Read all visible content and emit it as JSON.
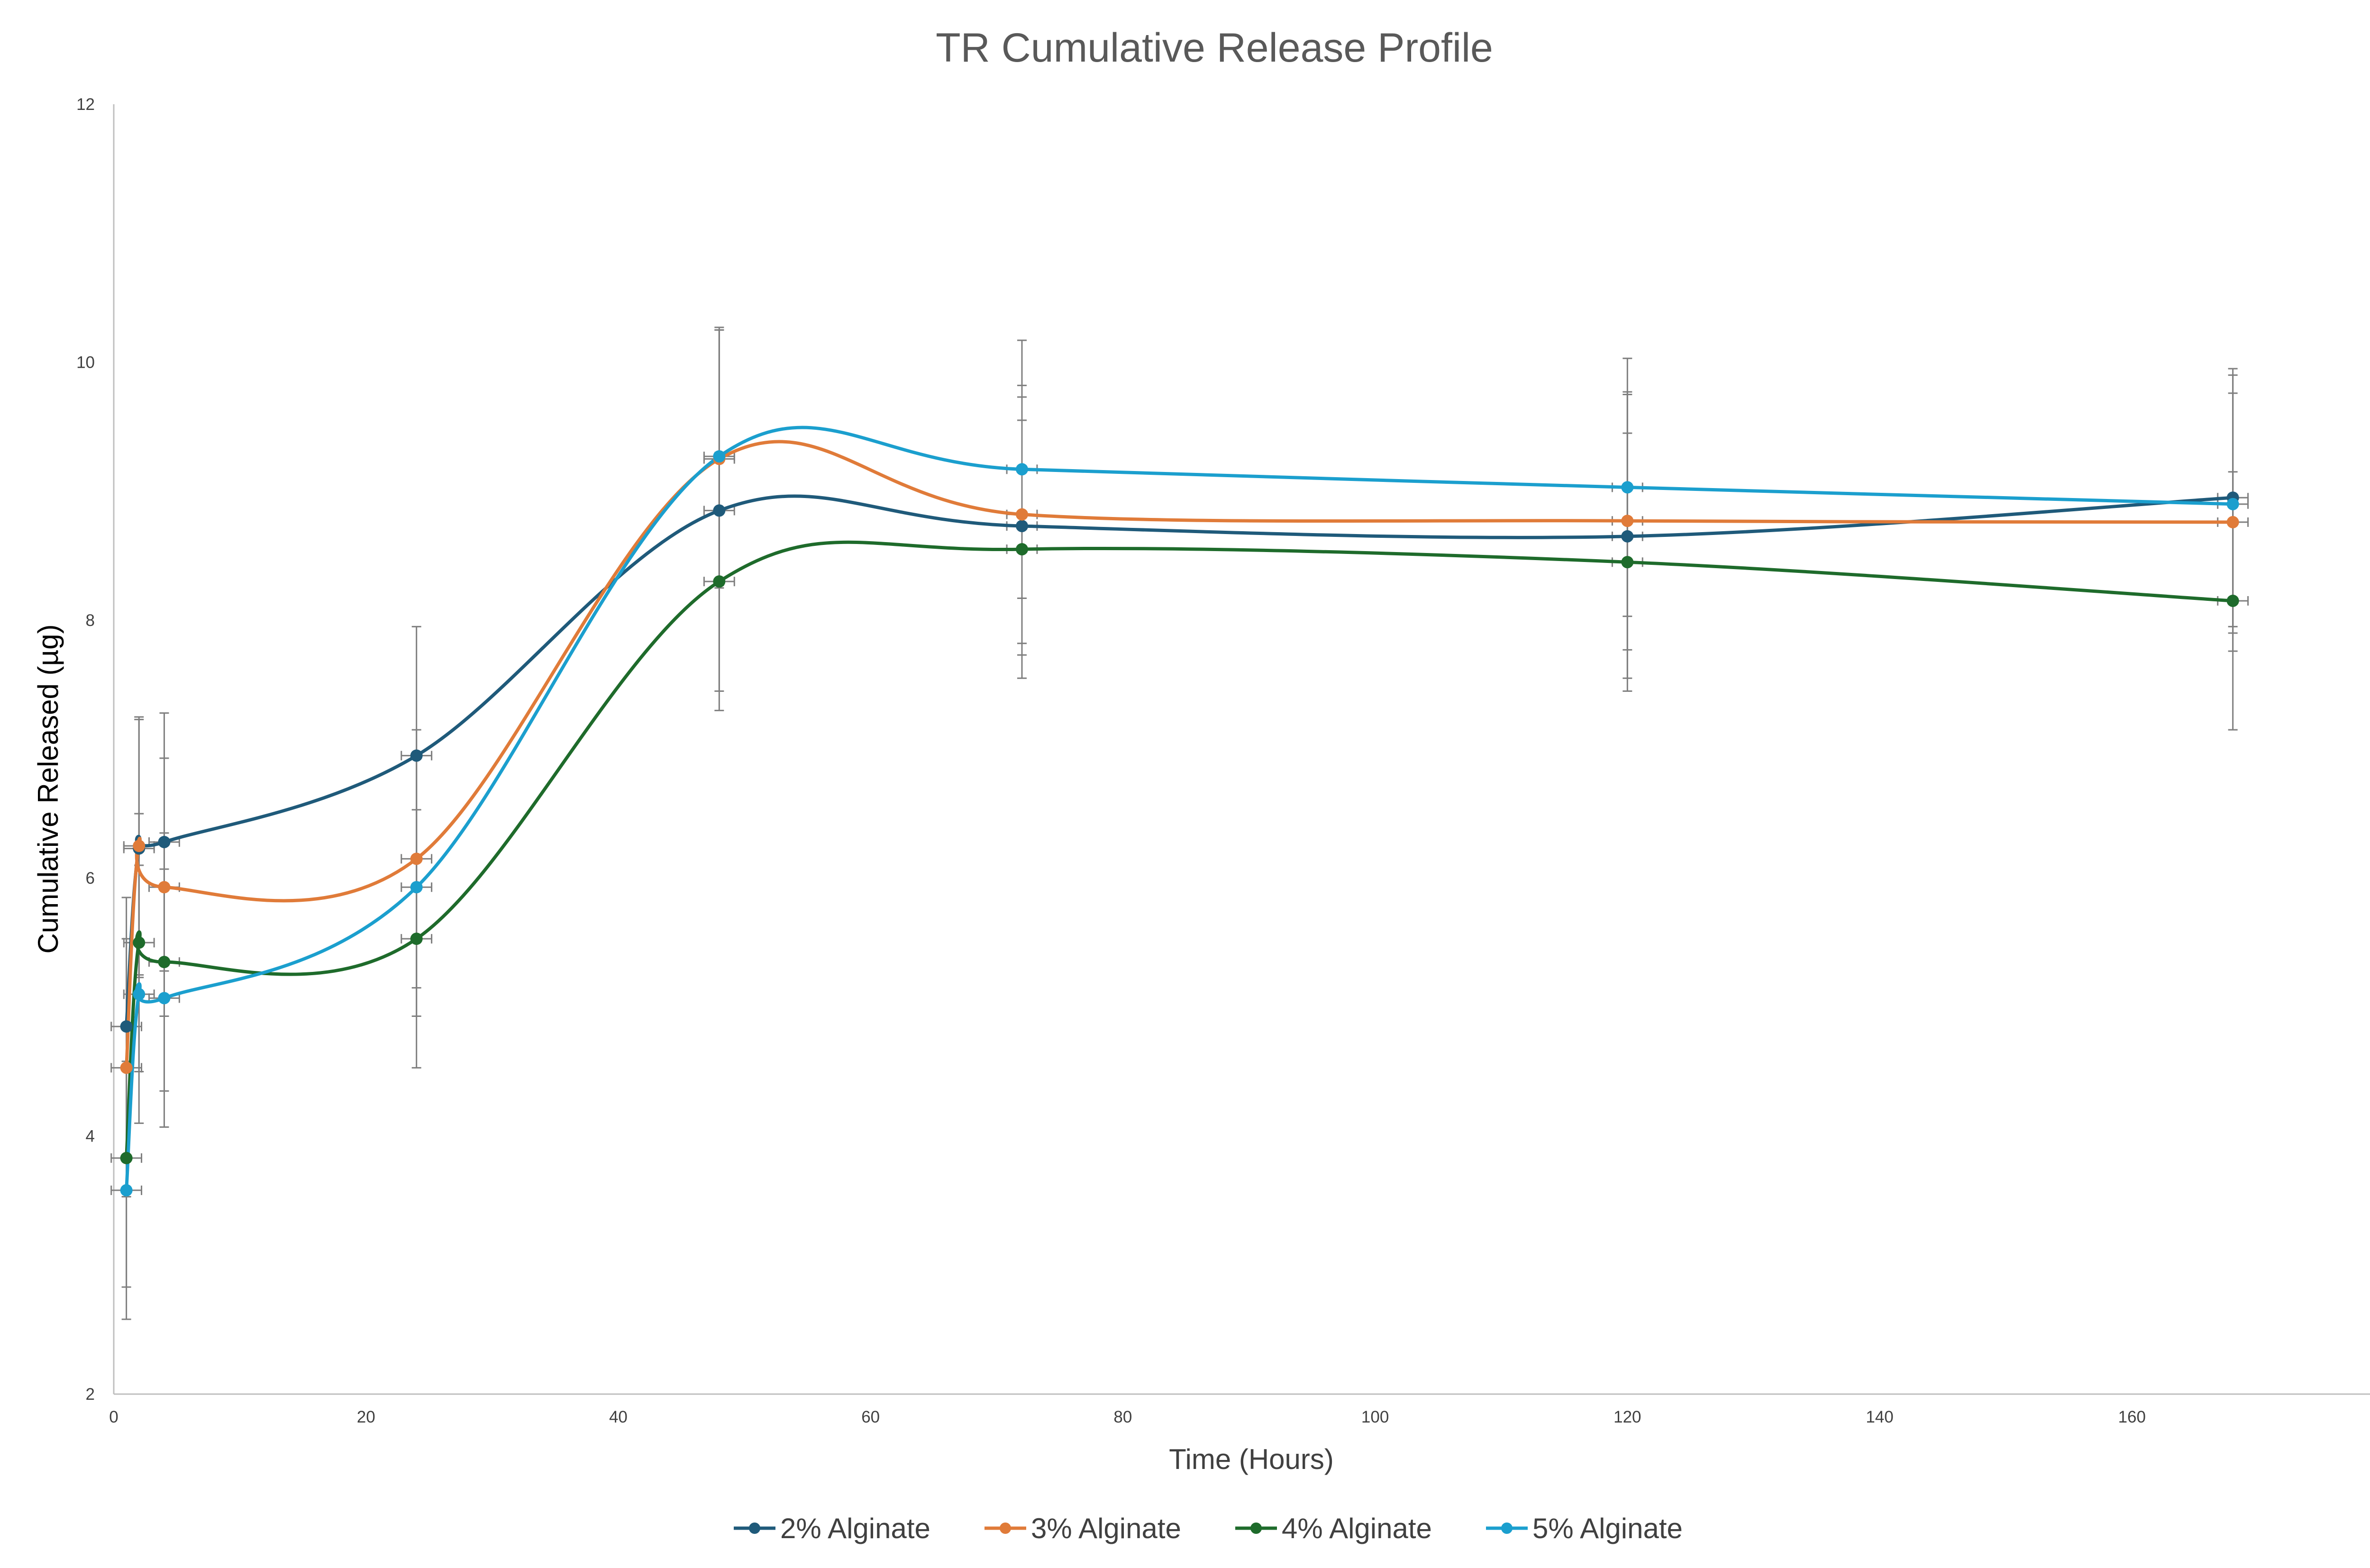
{
  "chart_data": {
    "type": "line",
    "title": "TR Cumulative Release Profile",
    "xlabel": "Time (Hours)",
    "ylabel": "Cumulative Released (µg)",
    "xlim": [
      0,
      180
    ],
    "ylim": [
      2,
      12
    ],
    "x_ticks": [
      0,
      20,
      40,
      60,
      80,
      100,
      120,
      140,
      160,
      180
    ],
    "y_ticks": [
      2,
      4,
      6,
      8,
      10,
      12
    ],
    "grid": false,
    "smooth": true,
    "legend_position": "bottom",
    "x": [
      1,
      2,
      4,
      24,
      48,
      72,
      120,
      168
    ],
    "series": [
      {
        "name": "2% Alginate",
        "color": "#1f5a7a",
        "values": [
          4.85,
          6.23,
          6.28,
          6.95,
          8.85,
          8.73,
          8.65,
          8.95
        ],
        "error": [
          1.0,
          1.0,
          1.0,
          1.0,
          1.4,
          1.0,
          1.1,
          1.0
        ]
      },
      {
        "name": "3% Alginate",
        "color": "#e07b39",
        "values": [
          4.53,
          6.25,
          5.93,
          6.15,
          9.25,
          8.82,
          8.77,
          8.76
        ],
        "error": [
          1.0,
          1.0,
          1.0,
          1.0,
          1.0,
          1.0,
          1.0,
          1.0
        ]
      },
      {
        "name": "4% Alginate",
        "color": "#1e6b2b",
        "values": [
          3.83,
          5.5,
          5.35,
          5.53,
          8.3,
          8.55,
          8.45,
          8.15
        ],
        "error": [
          1.0,
          1.0,
          1.0,
          1.0,
          1.0,
          1.0,
          1.0,
          1.0
        ]
      },
      {
        "name": "5% Alginate",
        "color": "#1b9fce",
        "values": [
          3.58,
          5.1,
          5.07,
          5.93,
          9.27,
          9.17,
          9.03,
          8.9
        ],
        "error": [
          1.0,
          1.0,
          1.0,
          1.0,
          1.0,
          1.0,
          1.0,
          1.0
        ]
      }
    ]
  }
}
